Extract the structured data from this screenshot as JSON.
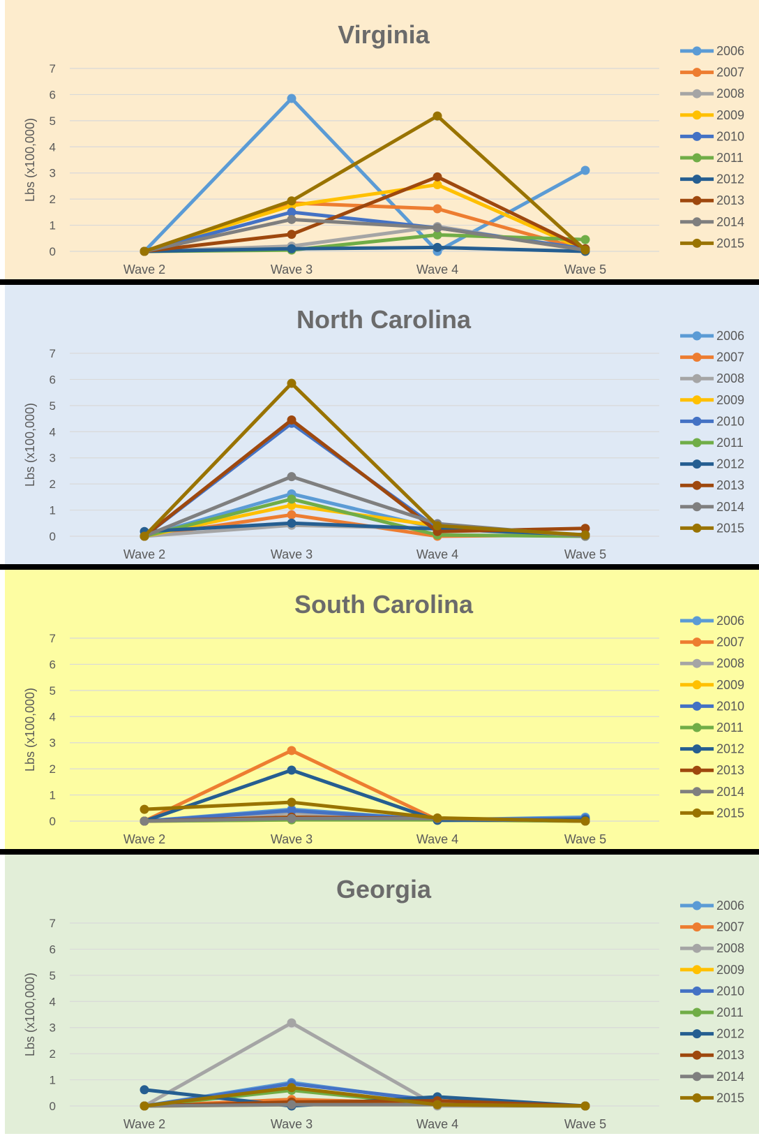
{
  "chart_data": [
    {
      "type": "line",
      "title": "Virginia",
      "ylabel": "Lbs (x100,000)",
      "xlabel": "",
      "categories": [
        "Wave 2",
        "Wave 3",
        "Wave 4",
        "Wave 5"
      ],
      "ylim": [
        0,
        7
      ],
      "yticks": [
        0,
        1,
        2,
        3,
        4,
        5,
        6,
        7
      ],
      "grid": true,
      "legend": "right",
      "background": "#fdeccd",
      "series": [
        {
          "name": "2006",
          "color": "#5b9bd5",
          "values": [
            0,
            5.85,
            0,
            3.1
          ]
        },
        {
          "name": "2007",
          "color": "#ed7d31",
          "values": [
            0,
            1.85,
            1.63,
            0.05
          ]
        },
        {
          "name": "2008",
          "color": "#a5a5a5",
          "values": [
            0,
            0.2,
            0.95,
            0.05
          ]
        },
        {
          "name": "2009",
          "color": "#ffc000",
          "values": [
            0,
            1.75,
            2.55,
            0.05
          ]
        },
        {
          "name": "2010",
          "color": "#4472c4",
          "values": [
            0,
            1.5,
            0.9,
            0.1
          ]
        },
        {
          "name": "2011",
          "color": "#70ad47",
          "values": [
            0,
            0.05,
            0.63,
            0.45
          ]
        },
        {
          "name": "2012",
          "color": "#255e91",
          "values": [
            0,
            0.1,
            0.15,
            0
          ]
        },
        {
          "name": "2013",
          "color": "#9e480e",
          "values": [
            0,
            0.65,
            2.85,
            0.1
          ]
        },
        {
          "name": "2014",
          "color": "#7f7f7f",
          "values": [
            0,
            1.22,
            0.9,
            0.05
          ]
        },
        {
          "name": "2015",
          "color": "#997300",
          "values": [
            0,
            1.93,
            5.18,
            0.05
          ]
        }
      ]
    },
    {
      "type": "line",
      "title": "North Carolina",
      "ylabel": "Lbs (x100,000)",
      "xlabel": "",
      "categories": [
        "Wave 2",
        "Wave 3",
        "Wave 4",
        "Wave 5"
      ],
      "ylim": [
        0,
        7
      ],
      "yticks": [
        0,
        1,
        2,
        3,
        4,
        5,
        6,
        7
      ],
      "grid": true,
      "legend": "right",
      "background": "#dfe9f5",
      "series": [
        {
          "name": "2006",
          "color": "#5b9bd5",
          "values": [
            0,
            1.62,
            0.3,
            0.05
          ]
        },
        {
          "name": "2007",
          "color": "#ed7d31",
          "values": [
            0,
            0.82,
            0,
            0.05
          ]
        },
        {
          "name": "2008",
          "color": "#a5a5a5",
          "values": [
            0,
            0.42,
            0.3,
            0
          ]
        },
        {
          "name": "2009",
          "color": "#ffc000",
          "values": [
            0,
            1.18,
            0.4,
            0
          ]
        },
        {
          "name": "2010",
          "color": "#4472c4",
          "values": [
            0,
            4.32,
            0.3,
            0.05
          ]
        },
        {
          "name": "2011",
          "color": "#70ad47",
          "values": [
            0,
            1.42,
            0.05,
            0
          ]
        },
        {
          "name": "2012",
          "color": "#255e91",
          "values": [
            0.18,
            0.5,
            0.28,
            0.05
          ]
        },
        {
          "name": "2013",
          "color": "#9e480e",
          "values": [
            0,
            4.45,
            0.18,
            0.3
          ]
        },
        {
          "name": "2014",
          "color": "#7f7f7f",
          "values": [
            0,
            2.28,
            0.48,
            0
          ]
        },
        {
          "name": "2015",
          "color": "#997300",
          "values": [
            0,
            5.85,
            0.4,
            0.05
          ]
        }
      ]
    },
    {
      "type": "line",
      "title": "South Carolina",
      "ylabel": "Lbs (x100,000)",
      "xlabel": "",
      "categories": [
        "Wave 2",
        "Wave 3",
        "Wave 4",
        "Wave 5"
      ],
      "ylim": [
        0,
        7
      ],
      "yticks": [
        0,
        1,
        2,
        3,
        4,
        5,
        6,
        7
      ],
      "grid": true,
      "legend": "right",
      "background": "#fdfda2",
      "series": [
        {
          "name": "2006",
          "color": "#5b9bd5",
          "values": [
            0,
            0.45,
            0.05,
            0.15
          ]
        },
        {
          "name": "2007",
          "color": "#ed7d31",
          "values": [
            0,
            2.7,
            0.05,
            0.05
          ]
        },
        {
          "name": "2008",
          "color": "#a5a5a5",
          "values": [
            0,
            0.3,
            0.1,
            0.05
          ]
        },
        {
          "name": "2009",
          "color": "#ffc000",
          "values": [
            0,
            0.05,
            0.05,
            0
          ]
        },
        {
          "name": "2010",
          "color": "#4472c4",
          "values": [
            0,
            0.4,
            0.05,
            0.1
          ]
        },
        {
          "name": "2011",
          "color": "#70ad47",
          "values": [
            0,
            0.05,
            0.05,
            0
          ]
        },
        {
          "name": "2012",
          "color": "#255e91",
          "values": [
            0,
            1.95,
            0.03,
            0.05
          ]
        },
        {
          "name": "2013",
          "color": "#9e480e",
          "values": [
            0,
            0.15,
            0.1,
            0
          ]
        },
        {
          "name": "2014",
          "color": "#7f7f7f",
          "values": [
            0,
            0.1,
            0.1,
            0
          ]
        },
        {
          "name": "2015",
          "color": "#997300",
          "values": [
            0.45,
            0.72,
            0.12,
            0
          ]
        }
      ]
    },
    {
      "type": "line",
      "title": "Georgia",
      "ylabel": "Lbs (x100,000)",
      "xlabel": "",
      "categories": [
        "Wave 2",
        "Wave 3",
        "Wave 4",
        "Wave 5"
      ],
      "ylim": [
        0,
        7
      ],
      "yticks": [
        0,
        1,
        2,
        3,
        4,
        5,
        6,
        7
      ],
      "grid": true,
      "legend": "right",
      "background": "#e2eed8",
      "series": [
        {
          "name": "2006",
          "color": "#5b9bd5",
          "values": [
            0,
            0.9,
            0.15,
            0
          ]
        },
        {
          "name": "2007",
          "color": "#ed7d31",
          "values": [
            0,
            0.25,
            0.1,
            0
          ]
        },
        {
          "name": "2008",
          "color": "#a5a5a5",
          "values": [
            0,
            3.18,
            0,
            0
          ]
        },
        {
          "name": "2009",
          "color": "#ffc000",
          "values": [
            0,
            0.05,
            0.05,
            0
          ]
        },
        {
          "name": "2010",
          "color": "#4472c4",
          "values": [
            0,
            0.85,
            0.2,
            0
          ]
        },
        {
          "name": "2011",
          "color": "#70ad47",
          "values": [
            0,
            0.6,
            0.05,
            0
          ]
        },
        {
          "name": "2012",
          "color": "#255e91",
          "values": [
            0.62,
            0,
            0.35,
            0
          ]
        },
        {
          "name": "2013",
          "color": "#9e480e",
          "values": [
            0,
            0.15,
            0.2,
            0
          ]
        },
        {
          "name": "2014",
          "color": "#7f7f7f",
          "values": [
            0,
            0.05,
            0.05,
            0
          ]
        },
        {
          "name": "2015",
          "color": "#997300",
          "values": [
            0,
            0.7,
            0.05,
            0
          ]
        }
      ]
    }
  ]
}
